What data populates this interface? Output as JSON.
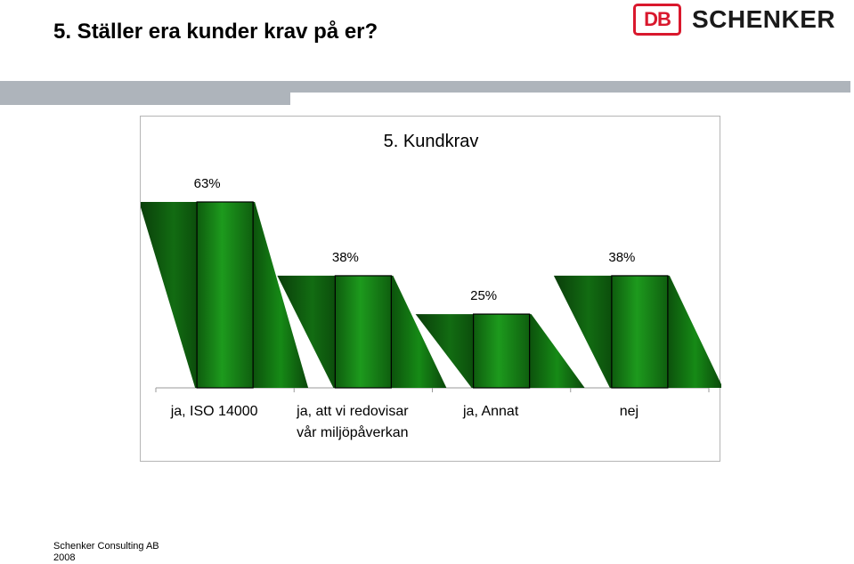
{
  "slide": {
    "title": "5. Ställer era kunder krav på er?",
    "logo": {
      "mark": "DB",
      "word": "SCHENKER"
    },
    "footer": {
      "line1": "Schenker Consulting AB",
      "line2": "2008"
    }
  },
  "colors": {
    "brand_red": "#d9182d",
    "band_gray": "#aeb4bb",
    "bar_green": "#1a7a1a",
    "bar_shadow": "#0d4a0d"
  },
  "chart_data": {
    "type": "bar",
    "title": "5. Kundkrav",
    "categories": [
      [
        "ja, ISO 14000"
      ],
      [
        "ja, att vi redovisar",
        "vår miljöpåverkan"
      ],
      [
        "ja, Annat"
      ],
      [
        "nej"
      ]
    ],
    "values": [
      63,
      38,
      25,
      38
    ],
    "data_labels": [
      "63%",
      "38%",
      "25%",
      "38%"
    ],
    "unit": "%",
    "ylim": [
      0,
      63
    ],
    "grid": false,
    "legend": "none",
    "style": "3d-perspective"
  }
}
